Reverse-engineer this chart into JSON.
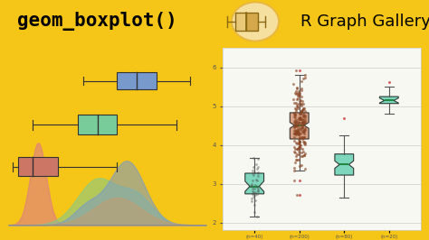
{
  "bg_color": "#f5c518",
  "header_bg": "#ffffff",
  "icon_bg": "#f5e0a0",
  "icon_border": "#e8b840",
  "left_panel_bg": "#ffffff",
  "right_bg": "#f8f8f2",
  "n_sizes": [
    40,
    200,
    80,
    20
  ],
  "box_colors": [
    "#55ccaa",
    "#cc8866",
    "#55ccaa",
    "#55ccaa"
  ],
  "jitter_color": "#884422",
  "outlier_color": "#cc4444",
  "density_colors": [
    "#e08080",
    "#80cc90",
    "#7799cc",
    "#cc9966"
  ],
  "left_box_colors": [
    "#7799cc",
    "#77cc99",
    "#cc7766"
  ]
}
